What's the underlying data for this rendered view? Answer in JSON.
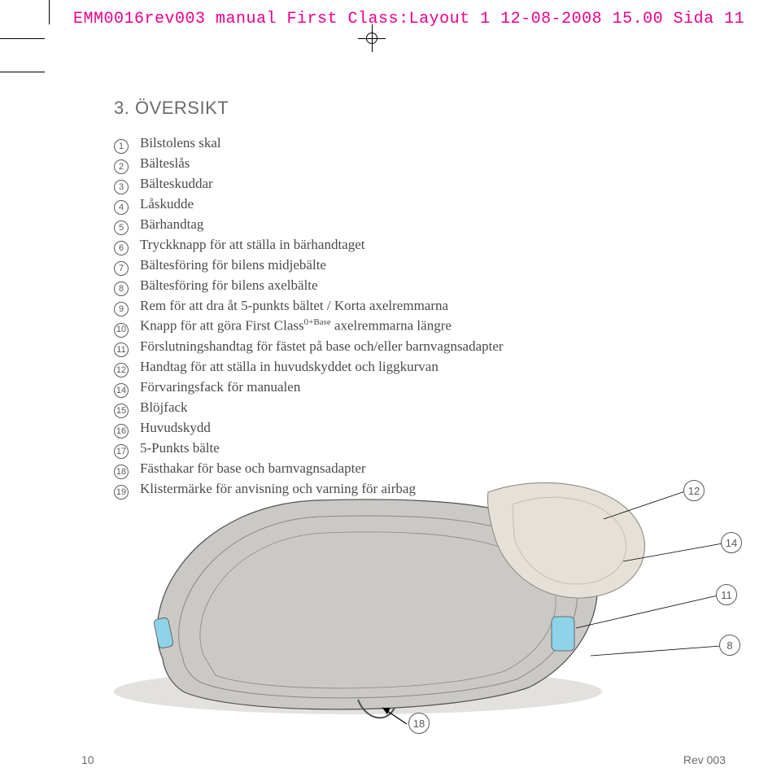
{
  "header": "EMM0016rev003 manual First Class:Layout 1  12-08-2008  15.00  Sida 11",
  "section_title": "3. ÖVERSIKT",
  "items": [
    {
      "n": "1",
      "text": "Bilstolens skal"
    },
    {
      "n": "2",
      "text": "Bälteslås"
    },
    {
      "n": "3",
      "text": "Bälteskuddar"
    },
    {
      "n": "4",
      "text": "Låskudde"
    },
    {
      "n": "5",
      "text": "Bärhandtag"
    },
    {
      "n": "6",
      "text": "Tryckknapp för att ställa in bärhandtaget"
    },
    {
      "n": "7",
      "text": "Bältesföring för bilens midjebälte"
    },
    {
      "n": "8",
      "text": "Bältesföring för bilens axelbälte"
    },
    {
      "n": "9",
      "text": "Rem för att dra åt 5-punkts bältet / Korta axelremmarna"
    },
    {
      "n": "10",
      "text_pre": "Knapp för att göra First Class",
      "sup": "0+Base",
      "text_post": " axelremmarna längre"
    },
    {
      "n": "11",
      "text": "Förslutningshandtag för fästet på base och/eller barnvagnsadapter"
    },
    {
      "n": "12",
      "text": "Handtag för att ställa in huvudskyddet och liggkurvan"
    },
    {
      "n": "14",
      "text": "Förvaringsfack för manualen"
    },
    {
      "n": "15",
      "text": "Blöjfack"
    },
    {
      "n": "16",
      "text": "Huvudskydd"
    },
    {
      "n": "17",
      "text": "5-Punkts bälte"
    },
    {
      "n": "18",
      "text": "Fästhakar för base och barnvagnsadapter"
    },
    {
      "n": "19",
      "text": "Klistermärke för anvisning och varning för airbag"
    }
  ],
  "callouts": [
    "12",
    "14",
    "11",
    "8",
    "18"
  ],
  "footer": {
    "page": "10",
    "rev": "Rev 003"
  },
  "colors": {
    "magenta": "#ed008c",
    "text": "#4a4a4a",
    "grey": "#6b6b6b",
    "seat_body": "#cbc9c6",
    "seat_body_dark": "#a6a4a1",
    "seat_outline": "#4f4f4f",
    "cushion": "#e6e1d8",
    "accent_blue": "#8fd3e8"
  }
}
